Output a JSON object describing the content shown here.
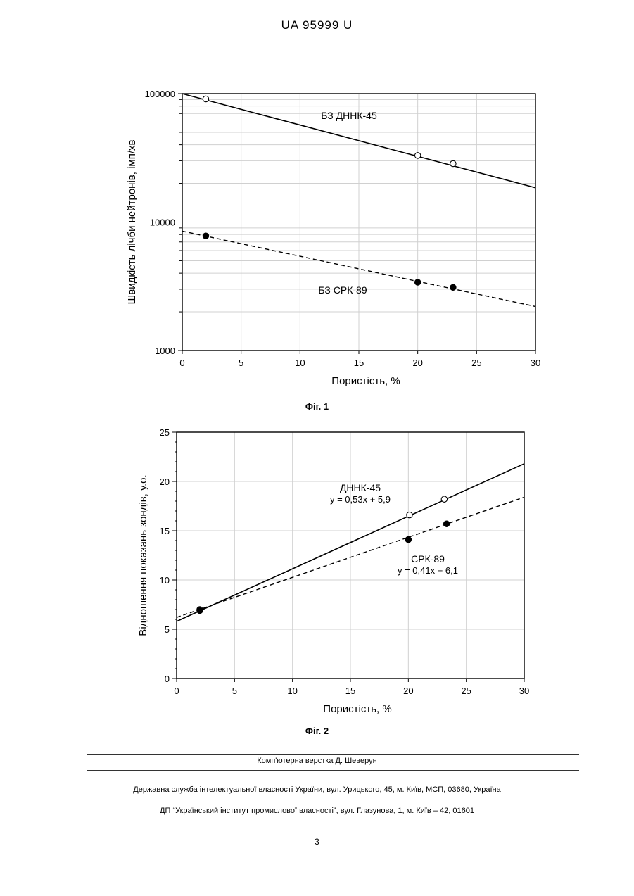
{
  "header": "UA   95999   U",
  "chart_data": [
    {
      "type": "scatter",
      "scale_y": "log",
      "xlabel": "Пористість, %",
      "ylabel": "Швидкість лічби нейтронів, імп/хв",
      "xlim": [
        0,
        30
      ],
      "ylim": [
        1000,
        100000
      ],
      "x_ticks": [
        "0",
        "5",
        "10",
        "15",
        "20",
        "25",
        "30"
      ],
      "y_ticks": [
        "1000",
        "10000",
        "100000"
      ],
      "series": [
        {
          "name": "БЗ ДННК-45",
          "marker": "open-circle",
          "line": "solid",
          "points": [
            [
              2,
              91000
            ],
            [
              20,
              33000
            ],
            [
              23,
              28500
            ]
          ],
          "fit": [
            [
              0,
              100000
            ],
            [
              30,
              18500
            ]
          ]
        },
        {
          "name": "БЗ СРК-89",
          "marker": "filled-circle",
          "line": "dashed",
          "points": [
            [
              2,
              7800
            ],
            [
              20,
              3400
            ],
            [
              23,
              3100
            ]
          ],
          "fit": [
            [
              0,
              8500
            ],
            [
              30,
              2200
            ]
          ]
        }
      ],
      "caption": "Фіг. 1"
    },
    {
      "type": "scatter",
      "xlabel": "Пористість, %",
      "ylabel": "Відношення показань зондів, у.о.",
      "xlim": [
        0,
        30
      ],
      "ylim": [
        0,
        25
      ],
      "x_ticks": [
        "0",
        "5",
        "10",
        "15",
        "20",
        "25",
        "30"
      ],
      "y_ticks": [
        "0",
        "5",
        "10",
        "15",
        "20",
        "25"
      ],
      "series": [
        {
          "name": "ДННК-45",
          "equation": "y = 0,53x + 5,9",
          "marker": "open-circle",
          "line": "solid",
          "points": [
            [
              2,
              7.0
            ],
            [
              20.1,
              16.6
            ],
            [
              23.1,
              18.2
            ]
          ],
          "fit": [
            [
              0,
              5.8
            ],
            [
              30,
              21.8
            ]
          ]
        },
        {
          "name": "СРК-89",
          "equation": "y = 0,41x + 6,1",
          "marker": "filled-circle",
          "line": "dashed",
          "points": [
            [
              2,
              6.9
            ],
            [
              20,
              14.1
            ],
            [
              23.3,
              15.7
            ]
          ],
          "fit": [
            [
              0,
              6.2
            ],
            [
              30,
              18.4
            ]
          ]
        }
      ],
      "caption": "Фіг. 2"
    }
  ],
  "footer": {
    "line1": "Комп'ютерна верстка Д. Шеверун",
    "line2": "Державна служба інтелектуальної власності України, вул. Урицького, 45, м. Київ, МСП, 03680, Україна",
    "line3": "ДП “Український інститут промислової власності”, вул. Глазунова, 1, м. Київ – 42, 01601",
    "page": "3"
  }
}
